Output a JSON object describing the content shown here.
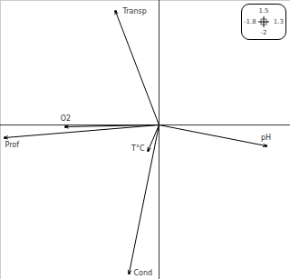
{
  "chart_data": {
    "type": "arrow",
    "categories": [
      "Transp",
      "O2",
      "Prof",
      "T°C",
      "pH",
      "Cond"
    ],
    "x": [
      -0.48,
      -1.03,
      -1.7,
      -0.12,
      1.18,
      -0.33
    ],
    "values": [
      1.25,
      -0.02,
      -0.14,
      -0.28,
      -0.23,
      -1.63
    ],
    "xlim": [
      -1.75,
      1.45
    ],
    "ylim": [
      -1.7,
      1.37
    ],
    "tick_labels": false,
    "color": "#000000",
    "scale_box": {
      "top": 1.5,
      "left": -1.8,
      "right": 1.3,
      "bottom": -2
    }
  }
}
